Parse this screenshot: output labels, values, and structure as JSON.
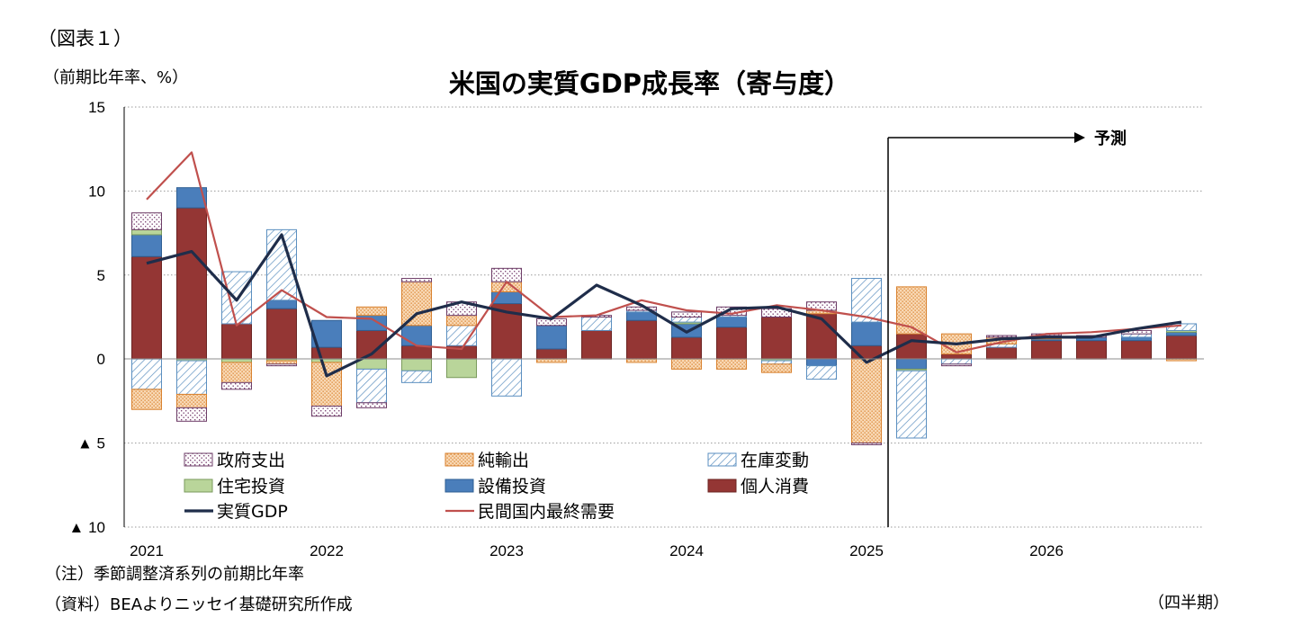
{
  "figure_label": "（図表１）",
  "notes": {
    "note1": "（注）季節調整済系列の前期比年率",
    "note2": "（資料）BEAよりニッセイ基礎研究所作成",
    "xunit": "（四半期）"
  },
  "forecast_label": "予測",
  "colors": {
    "gov": "#7f4a78",
    "netexp": "#e39a4f",
    "inv": "#5b8fc0",
    "res": "#b9d59a",
    "biz": "#4a7ebb",
    "pc": "#943634",
    "gdp": "#1f2d4a",
    "dom": "#c0504d"
  },
  "chart_data": {
    "type": "bar",
    "title": "米国の実質GDP成長率（寄与度）",
    "ylabel": "（前期比年率、%）",
    "ylim": [
      -10,
      15
    ],
    "yticks": [
      {
        "value": 15,
        "label": "15"
      },
      {
        "value": 10,
        "label": "10"
      },
      {
        "value": 5,
        "label": "5"
      },
      {
        "value": 0,
        "label": "0"
      },
      {
        "value": -5,
        "label": "▲ 5"
      },
      {
        "value": -10,
        "label": "▲ 10"
      }
    ],
    "year_labels": [
      {
        "index": 0,
        "label": "2021"
      },
      {
        "index": 4,
        "label": "2022"
      },
      {
        "index": 8,
        "label": "2023"
      },
      {
        "index": 12,
        "label": "2024"
      },
      {
        "index": 16,
        "label": "2025"
      },
      {
        "index": 20,
        "label": "2026"
      }
    ],
    "forecast_start_index": 17,
    "grid": true,
    "legend_position": "bottom-inside",
    "stack_series": [
      {
        "key": "pc",
        "name": "個人消費",
        "values": [
          6.1,
          9.0,
          2.1,
          3.0,
          0.7,
          1.7,
          0.8,
          0.8,
          3.3,
          0.6,
          1.7,
          2.3,
          1.3,
          1.9,
          2.5,
          2.7,
          0.8,
          1.5,
          0.3,
          0.7,
          1.1,
          1.1,
          1.1,
          1.4
        ]
      },
      {
        "key": "biz",
        "name": "設備投資",
        "values": [
          1.3,
          1.2,
          0.0,
          0.5,
          1.6,
          0.9,
          1.2,
          0.0,
          0.7,
          1.4,
          0.0,
          0.5,
          0.8,
          0.6,
          0.0,
          -0.4,
          1.4,
          -0.6,
          0.0,
          0.0,
          0.1,
          0.2,
          0.2,
          0.2
        ]
      },
      {
        "key": "res",
        "name": "住宅投資",
        "values": [
          0.3,
          -0.1,
          -0.2,
          -0.1,
          -0.2,
          -0.6,
          -0.7,
          -1.1,
          0.0,
          0.0,
          0.0,
          0.0,
          0.1,
          0.0,
          -0.1,
          0.0,
          0.0,
          -0.1,
          0.0,
          0.0,
          0.0,
          0.0,
          0.0,
          0.1
        ]
      },
      {
        "key": "inv",
        "name": "在庫変動",
        "values": [
          -1.8,
          -2.0,
          3.1,
          4.2,
          0.0,
          -2.0,
          -0.7,
          1.2,
          -2.2,
          0.0,
          0.8,
          0.1,
          0.3,
          0.1,
          -0.2,
          -0.8,
          2.6,
          -4.0,
          -0.3,
          0.2,
          0.0,
          0.0,
          0.2,
          0.4
        ]
      },
      {
        "key": "netexp",
        "name": "純輸出",
        "values": [
          -1.2,
          -0.8,
          -1.2,
          -0.2,
          -2.6,
          0.5,
          2.6,
          0.6,
          0.6,
          -0.2,
          0.0,
          -0.2,
          -0.6,
          -0.6,
          -0.5,
          0.2,
          -5.0,
          2.8,
          1.2,
          0.4,
          0.2,
          0.0,
          0.0,
          -0.1
        ]
      },
      {
        "key": "gov",
        "name": "政府支出",
        "values": [
          1.0,
          -0.8,
          -0.4,
          -0.1,
          -0.6,
          -0.3,
          0.2,
          0.8,
          0.8,
          0.4,
          0.1,
          0.2,
          0.3,
          0.5,
          0.5,
          0.5,
          -0.1,
          0.0,
          -0.1,
          0.1,
          0.1,
          0.1,
          0.2,
          0.0
        ]
      }
    ],
    "line_series": [
      {
        "key": "gdp",
        "name": "実質GDP",
        "values": [
          5.7,
          6.4,
          3.5,
          7.4,
          -1.0,
          0.3,
          2.7,
          3.4,
          2.8,
          2.4,
          4.4,
          3.2,
          1.6,
          3.0,
          3.1,
          2.4,
          -0.2,
          1.1,
          0.9,
          1.2,
          1.3,
          1.3,
          1.8,
          2.2
        ]
      },
      {
        "key": "dom",
        "name": "民間国内最終需要",
        "values": [
          9.5,
          12.3,
          2.0,
          4.1,
          2.5,
          2.4,
          0.8,
          0.6,
          4.6,
          2.5,
          2.6,
          3.5,
          2.9,
          2.7,
          3.2,
          2.9,
          2.5,
          1.9,
          0.4,
          1.0,
          1.5,
          1.6,
          1.8,
          2.0
        ]
      }
    ],
    "legend_order": [
      [
        "gov",
        "netexp",
        "inv"
      ],
      [
        "res",
        "biz",
        "pc"
      ],
      [
        "gdp",
        "dom"
      ]
    ]
  }
}
